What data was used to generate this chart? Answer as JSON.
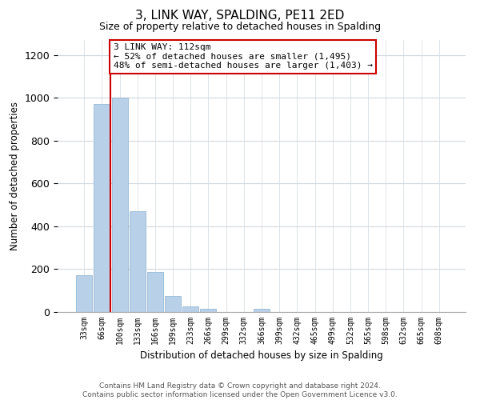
{
  "title": "3, LINK WAY, SPALDING, PE11 2ED",
  "subtitle": "Size of property relative to detached houses in Spalding",
  "xlabel": "Distribution of detached houses by size in Spalding",
  "ylabel": "Number of detached properties",
  "bar_labels": [
    "33sqm",
    "66sqm",
    "100sqm",
    "133sqm",
    "166sqm",
    "199sqm",
    "233sqm",
    "266sqm",
    "299sqm",
    "332sqm",
    "366sqm",
    "399sqm",
    "432sqm",
    "465sqm",
    "499sqm",
    "532sqm",
    "565sqm",
    "598sqm",
    "632sqm",
    "665sqm",
    "698sqm"
  ],
  "bar_values": [
    170,
    970,
    1000,
    470,
    185,
    75,
    25,
    15,
    0,
    0,
    15,
    0,
    0,
    0,
    0,
    0,
    0,
    0,
    0,
    0,
    0
  ],
  "bar_color": "#b8d0e8",
  "bar_edge_color": "#8ab0d0",
  "vline_x": 1.5,
  "vline_color": "#cc0000",
  "ylim": [
    0,
    1270
  ],
  "yticks": [
    0,
    200,
    400,
    600,
    800,
    1000,
    1200
  ],
  "annotation_text": "3 LINK WAY: 112sqm\n← 52% of detached houses are smaller (1,495)\n48% of semi-detached houses are larger (1,403) →",
  "annotation_box_color": "#ffffff",
  "annotation_box_edge": "#cc0000",
  "footnote1": "Contains HM Land Registry data © Crown copyright and database right 2024.",
  "footnote2": "Contains public sector information licensed under the Open Government Licence v3.0.",
  "background_color": "#ffffff",
  "grid_color": "#d0d8e0"
}
